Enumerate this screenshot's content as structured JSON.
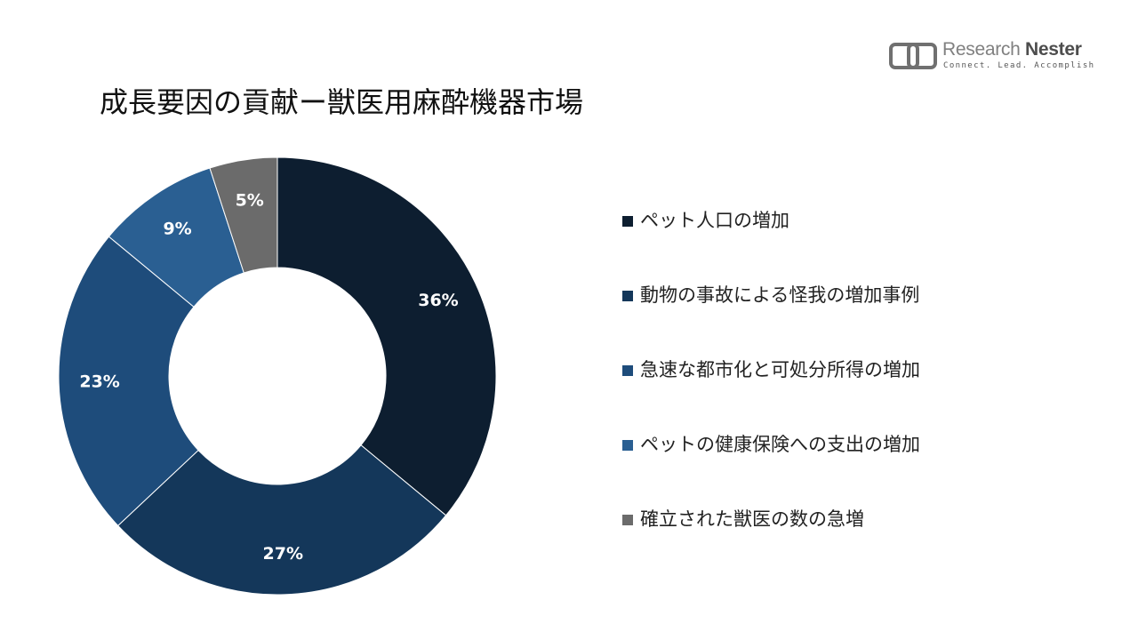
{
  "brand": {
    "name_light": "Research",
    "name_bold": "Nester",
    "tagline": "Connect. Lead. Accomplish",
    "color": "#666666"
  },
  "chart_data": {
    "type": "pie",
    "variant": "donut",
    "title": "成長要因の貢献ー獣医用麻酔機器市場",
    "categories": [
      "ペット人口の増加",
      "動物の事故による怪我の増加事例",
      "急速な都市化と可処分所得の増加",
      "ペットの健康保険への支出の増加",
      "確立された獣医の数の急増"
    ],
    "values": [
      36,
      27,
      23,
      9,
      5
    ],
    "value_labels": [
      "36%",
      "27%",
      "23%",
      "9%",
      "5%"
    ],
    "colors": [
      "#0d1e30",
      "#14375a",
      "#1e4c7b",
      "#2a5f92",
      "#6b6b6b"
    ],
    "label_color": "#ffffff",
    "legend_position": "right",
    "start_angle": "top",
    "direction": "clockwise"
  }
}
